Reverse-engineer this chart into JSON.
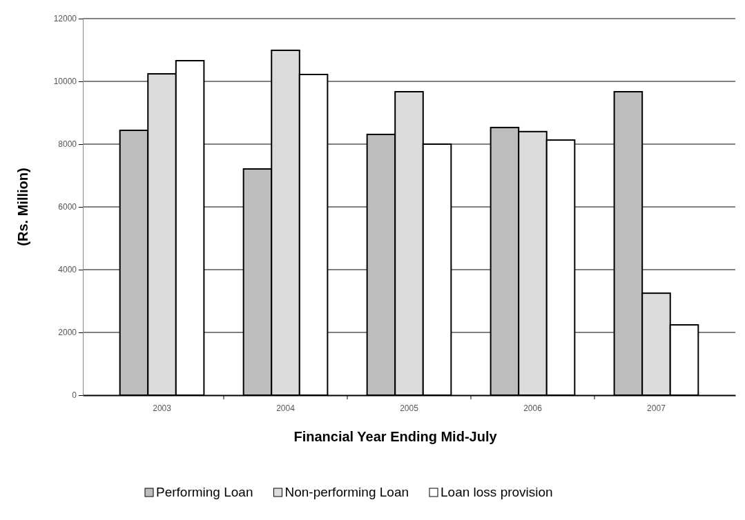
{
  "chart_data": {
    "type": "bar",
    "xlabel": "Financial Year Ending Mid-July",
    "ylabel": "(Rs. Million)",
    "categories": [
      "2003",
      "2004",
      "2005",
      "2006",
      "2007"
    ],
    "series": [
      {
        "name": "Performing Loan",
        "color": "#bdbdbd",
        "values": [
          8440,
          7210,
          8310,
          8530,
          9670
        ]
      },
      {
        "name": "Non-performing Loan",
        "color": "#dcdcdc",
        "values": [
          10240,
          10990,
          9670,
          8400,
          3250
        ]
      },
      {
        "name": "Loan loss provision",
        "color": "#ffffff",
        "values": [
          10660,
          10220,
          8000,
          8130,
          2240
        ]
      }
    ],
    "ylim": [
      0,
      12000
    ],
    "yticks": [
      0,
      2000,
      4000,
      6000,
      8000,
      10000,
      12000
    ],
    "grid": "y",
    "legend": "bottom"
  }
}
